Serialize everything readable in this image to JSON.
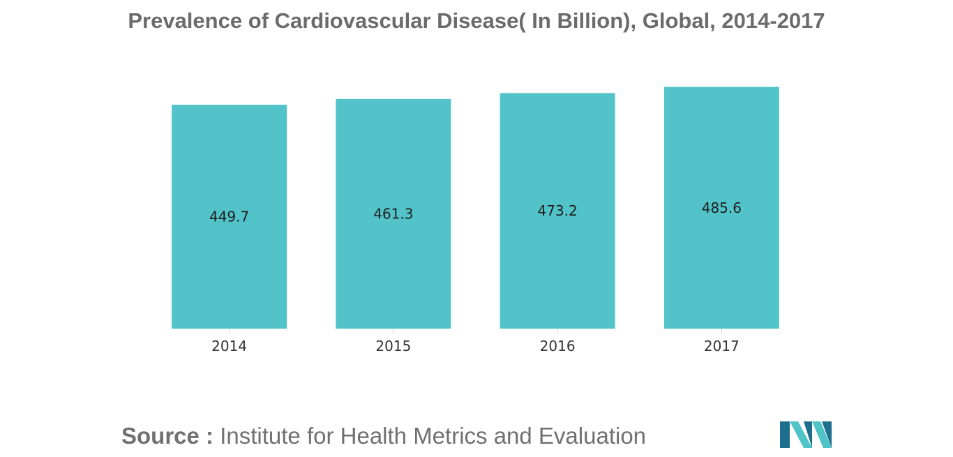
{
  "title": "Prevalence of Cardiovascular Disease( In Billion), Global, 2014-2017",
  "source": {
    "prefix": "Source :",
    "text": "Institute for Health Metrics and Evaluation"
  },
  "colors": {
    "bar": "#52c3c9",
    "logo_dark": "#1e6f8e",
    "logo_light": "#4fc3c8"
  },
  "logo_icon": "mordor-intelligence-logo-icon",
  "chart_data": {
    "type": "bar",
    "categories": [
      "2014",
      "2015",
      "2016",
      "2017"
    ],
    "values": [
      449.7,
      461.3,
      473.2,
      485.6
    ],
    "data_labels": [
      "449.7",
      "461.3",
      "473.2",
      "485.6"
    ],
    "title": "Prevalence of Cardiovascular Disease( In Billion), Global, 2014-2017",
    "xlabel": "",
    "ylabel": "",
    "ylim": [
      0,
      520
    ],
    "grid": false,
    "legend": "none"
  }
}
